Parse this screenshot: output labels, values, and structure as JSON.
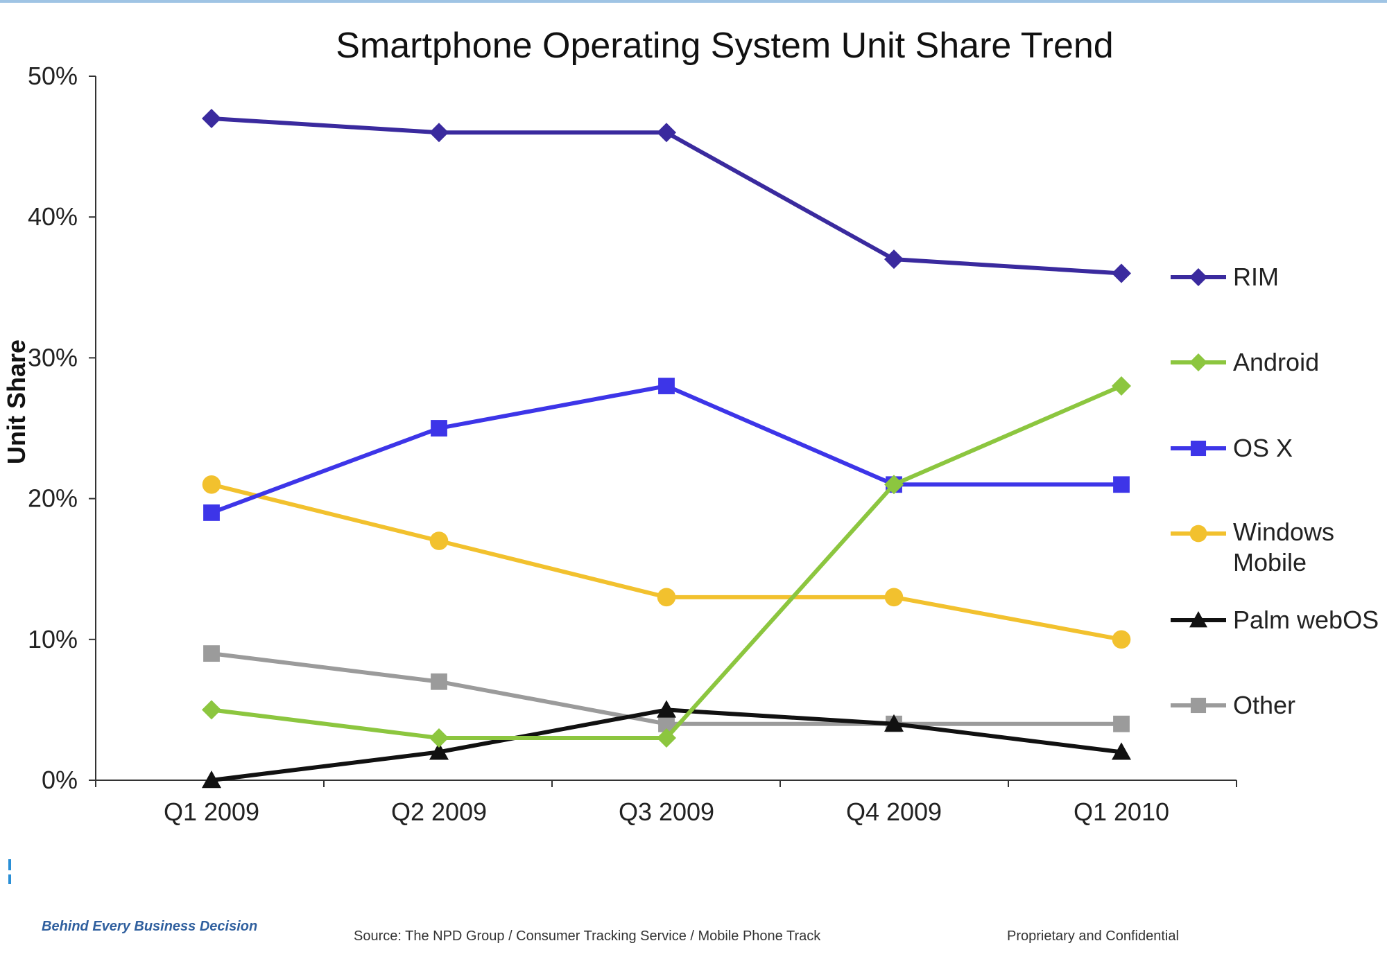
{
  "chart_data": {
    "type": "line",
    "title": "Smartphone Operating System Unit Share Trend",
    "xlabel": "",
    "ylabel": "Unit Share",
    "categories": [
      "Q1 2009",
      "Q2 2009",
      "Q3 2009",
      "Q4 2009",
      "Q1 2010"
    ],
    "y_ticks": [
      "0%",
      "10%",
      "20%",
      "30%",
      "40%",
      "50%"
    ],
    "ylim": [
      0,
      50
    ],
    "grid": false,
    "legend_position": "right",
    "series": [
      {
        "name": "RIM",
        "values": [
          47,
          46,
          46,
          37,
          36
        ],
        "color": "#3a2a9e",
        "marker": "diamond"
      },
      {
        "name": "Android",
        "values": [
          5,
          3,
          3,
          21,
          28
        ],
        "color": "#8cc63f",
        "marker": "diamond"
      },
      {
        "name": "OS X",
        "values": [
          19,
          25,
          28,
          21,
          21
        ],
        "color": "#3d35e8",
        "marker": "square"
      },
      {
        "name": "Windows Mobile",
        "values": [
          21,
          17,
          13,
          13,
          10
        ],
        "color": "#f2c12e",
        "marker": "circle"
      },
      {
        "name": "Palm webOS",
        "values": [
          0,
          2,
          5,
          4,
          2
        ],
        "color": "#111111",
        "marker": "triangle"
      },
      {
        "name": "Other",
        "values": [
          9,
          7,
          4,
          4,
          4
        ],
        "color": "#9b9b9b",
        "marker": "square"
      }
    ]
  },
  "footer": {
    "tagline": "Behind Every Business Decision",
    "source": "Source: The NPD Group / Consumer Tracking Service / Mobile Phone Track",
    "confidential": "Proprietary and Confidential"
  }
}
